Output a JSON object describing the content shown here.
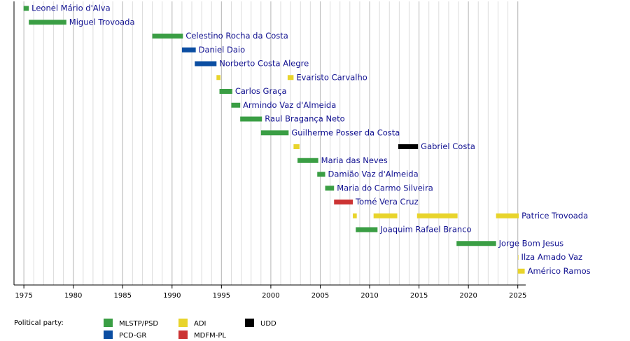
{
  "chart_data": {
    "type": "timeline",
    "xlim": [
      1974,
      2025.8
    ],
    "xticks": [
      1975,
      1980,
      1985,
      1990,
      1995,
      2000,
      2005,
      2010,
      2015,
      2020,
      2025
    ],
    "xgrid_step": 1,
    "legend_title": "Political party:",
    "parties": [
      {
        "name": "MLSTP/PSD",
        "color": "#3a9e44"
      },
      {
        "name": "PCD-GR",
        "color": "#0b4ea2"
      },
      {
        "name": "ADI",
        "color": "#e8d42c"
      },
      {
        "name": "MDFM-PL",
        "color": "#cc3333"
      },
      {
        "name": "UDD",
        "color": "#000000"
      }
    ],
    "rows": [
      {
        "name": "Leonel Mário d'Alva",
        "terms": [
          {
            "start": 1974.97,
            "end": 1975.5,
            "party": "MLSTP/PSD"
          }
        ]
      },
      {
        "name": "Miguel Trovoada",
        "terms": [
          {
            "start": 1975.5,
            "end": 1979.3,
            "party": "MLSTP/PSD"
          }
        ]
      },
      {
        "name": "Celestino Rocha da Costa",
        "terms": [
          {
            "start": 1988.0,
            "end": 1991.1,
            "party": "MLSTP/PSD"
          }
        ]
      },
      {
        "name": "Daniel Daio",
        "terms": [
          {
            "start": 1991.0,
            "end": 1992.4,
            "party": "PCD-GR"
          }
        ]
      },
      {
        "name": "Norberto Costa Alegre",
        "terms": [
          {
            "start": 1992.3,
            "end": 1994.5,
            "party": "PCD-GR"
          }
        ]
      },
      {
        "name": "Evaristo Carvalho",
        "terms": [
          {
            "start": 1994.5,
            "end": 1994.9,
            "party": "ADI"
          },
          {
            "start": 2001.7,
            "end": 2002.3,
            "party": "ADI"
          }
        ]
      },
      {
        "name": "Carlos Graça",
        "terms": [
          {
            "start": 1994.8,
            "end": 1996.1,
            "party": "MLSTP/PSD"
          }
        ]
      },
      {
        "name": "Armindo Vaz d'Almeida",
        "terms": [
          {
            "start": 1996.0,
            "end": 1996.9,
            "party": "MLSTP/PSD"
          }
        ]
      },
      {
        "name": "Raul Bragança Neto",
        "terms": [
          {
            "start": 1996.9,
            "end": 1999.1,
            "party": "MLSTP/PSD"
          }
        ]
      },
      {
        "name": "Guilherme Posser da Costa",
        "terms": [
          {
            "start": 1999.0,
            "end": 2001.8,
            "party": "MLSTP/PSD"
          }
        ]
      },
      {
        "name": "Gabriel Costa",
        "terms": [
          {
            "start": 2002.3,
            "end": 2002.9,
            "party": "ADI"
          },
          {
            "start": 2012.9,
            "end": 2014.9,
            "party": "UDD"
          }
        ]
      },
      {
        "name": "Maria das Neves",
        "terms": [
          {
            "start": 2002.7,
            "end": 2004.8,
            "party": "MLSTP/PSD"
          }
        ]
      },
      {
        "name": "Damião Vaz d'Almeida",
        "terms": [
          {
            "start": 2004.7,
            "end": 2005.5,
            "party": "MLSTP/PSD"
          }
        ]
      },
      {
        "name": "Maria do Carmo Silveira",
        "terms": [
          {
            "start": 2005.5,
            "end": 2006.4,
            "party": "MLSTP/PSD"
          }
        ]
      },
      {
        "name": "Tomé Vera Cruz",
        "terms": [
          {
            "start": 2006.4,
            "end": 2008.3,
            "party": "MDFM-PL"
          }
        ]
      },
      {
        "name": "Patrice Trovoada",
        "terms": [
          {
            "start": 2008.3,
            "end": 2008.7,
            "party": "ADI"
          },
          {
            "start": 2010.4,
            "end": 2012.8,
            "party": "ADI"
          },
          {
            "start": 2014.8,
            "end": 2018.9,
            "party": "ADI"
          },
          {
            "start": 2022.8,
            "end": 2025.1,
            "party": "ADI"
          }
        ]
      },
      {
        "name": "Joaquim Rafael Branco",
        "terms": [
          {
            "start": 2008.6,
            "end": 2010.8,
            "party": "MLSTP/PSD"
          }
        ]
      },
      {
        "name": "Jorge Bom Jesus",
        "terms": [
          {
            "start": 2018.8,
            "end": 2022.8,
            "party": "MLSTP/PSD"
          }
        ]
      },
      {
        "name": "Ilza Amado Vaz",
        "terms": [
          {
            "start": 2025.03,
            "end": 2025.06,
            "party": "ADI"
          }
        ]
      },
      {
        "name": "Américo Ramos",
        "terms": [
          {
            "start": 2025.0,
            "end": 2025.7,
            "party": "ADI"
          }
        ]
      }
    ]
  }
}
